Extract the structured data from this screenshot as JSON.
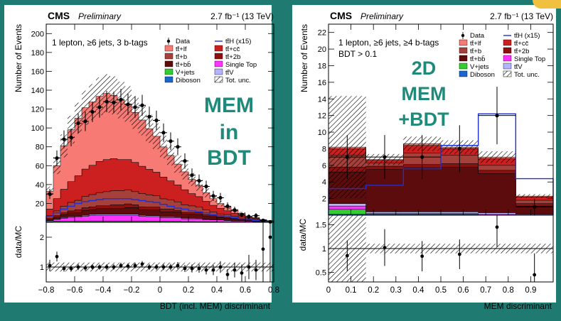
{
  "colors": {
    "frame": "#1f7a72",
    "tth": "#1f2fd1",
    "ttlf": "#f77a74",
    "ttcc": "#cc1f1f",
    "ttb": "#a6403a",
    "tt2b": "#8c1010",
    "ttbb": "#5c0c0c",
    "singletop": "#ff33ff",
    "vjets": "#33cc33",
    "ttv": "#b3b3ff",
    "diboson": "#1a66cc",
    "overlay": "#1f8a7a"
  },
  "chart_data": [
    {
      "type": "area",
      "experiment": "CMS",
      "status": "Preliminary",
      "lumi": "2.7 fb⁻¹ (13 TeV)",
      "selection": "1 lepton, ≥6 jets, 3 b-tags",
      "overlay_text": [
        "MEM",
        "in",
        "BDT"
      ],
      "xlabel": "BDT (incl. MEM) discriminant",
      "ylabel": "Number of Events",
      "ratio_ylabel": "data/MC",
      "xlim": [
        -0.8,
        0.8
      ],
      "ylim": [
        0,
        210
      ],
      "ratio_ylim": [
        0.5,
        2.5
      ],
      "xticks": [
        -0.8,
        -0.6,
        -0.4,
        -0.2,
        0,
        0.2,
        0.4,
        0.6,
        0.8
      ],
      "yticks": [
        20,
        40,
        60,
        80,
        100,
        120,
        140,
        160,
        180,
        200
      ],
      "ratio_yticks": [
        1,
        2
      ],
      "bin_edges": [
        -0.8,
        -0.75,
        -0.7,
        -0.65,
        -0.6,
        -0.55,
        -0.5,
        -0.45,
        -0.4,
        -0.35,
        -0.3,
        -0.25,
        -0.2,
        -0.15,
        -0.1,
        -0.05,
        0,
        0.05,
        0.1,
        0.15,
        0.2,
        0.25,
        0.3,
        0.35,
        0.4,
        0.45,
        0.5,
        0.55,
        0.6,
        0.65,
        0.7,
        0.75,
        0.8
      ],
      "stack": [
        {
          "name": "Diboson",
          "color": "#1a66cc",
          "values": [
            0.2,
            0.3,
            0.3,
            0.3,
            0.4,
            0.4,
            0.4,
            0.4,
            0.4,
            0.4,
            0.4,
            0.4,
            0.4,
            0.4,
            0.3,
            0.3,
            0.3,
            0.3,
            0.3,
            0.2,
            0.2,
            0.2,
            0.2,
            0.2,
            0.1,
            0.1,
            0.1,
            0.1,
            0.1,
            0.1,
            0,
            0
          ]
        },
        {
          "name": "V+jets",
          "color": "#33cc33",
          "values": [
            0.5,
            0.8,
            1,
            1,
            1,
            1,
            1,
            1,
            1,
            1,
            1,
            1,
            1,
            1,
            0.8,
            0.8,
            0.7,
            0.7,
            0.6,
            0.5,
            0.5,
            0.4,
            0.4,
            0.3,
            0.3,
            0.2,
            0.2,
            0.2,
            0.1,
            0.1,
            0.1,
            0
          ]
        },
        {
          "name": "Single Top",
          "color": "#ff33ff",
          "values": [
            1,
            2,
            3,
            4,
            4,
            5,
            6,
            6,
            6,
            6,
            6,
            6,
            6,
            5,
            5,
            5,
            4,
            4,
            4,
            3,
            3,
            3,
            2,
            2,
            2,
            1.5,
            1,
            1,
            0.8,
            0.5,
            0.3,
            0.2
          ]
        },
        {
          "name": "tt̄V",
          "color": "#b3b3ff",
          "values": [
            0.3,
            0.5,
            0.7,
            0.8,
            0.9,
            1,
            1,
            1.1,
            1.1,
            1.1,
            1.1,
            1.1,
            1.1,
            1,
            1,
            1,
            0.9,
            0.9,
            0.8,
            0.8,
            0.7,
            0.6,
            0.6,
            0.5,
            0.5,
            0.4,
            0.3,
            0.3,
            0.2,
            0.2,
            0.1,
            0.1
          ]
        },
        {
          "name": "tt̄+bb̄",
          "color": "#5c0c0c",
          "values": [
            1,
            2,
            3,
            4,
            4,
            5,
            5,
            6,
            6,
            6,
            6,
            7,
            7,
            6,
            6,
            6,
            5,
            5,
            5,
            4,
            4,
            4,
            3,
            3,
            2,
            2,
            2,
            1,
            1,
            1,
            0.5,
            0.3
          ]
        },
        {
          "name": "tt̄+2b",
          "color": "#8c1010",
          "values": [
            1,
            1.5,
            2,
            2,
            3,
            3,
            3,
            3,
            3,
            4,
            4,
            4,
            3,
            3,
            3,
            3,
            3,
            3,
            2,
            2,
            2,
            2,
            2,
            1,
            1,
            1,
            1,
            1,
            0.5,
            0.5,
            0.3,
            0.2
          ]
        },
        {
          "name": "tt̄+b",
          "color": "#a6403a",
          "values": [
            3,
            5,
            7,
            9,
            10,
            12,
            13,
            14,
            15,
            15,
            15,
            15,
            14,
            14,
            13,
            12,
            11,
            10,
            9,
            8,
            7,
            6,
            5,
            4,
            3,
            3,
            2,
            2,
            1,
            1,
            0.5,
            0.3
          ]
        },
        {
          "name": "tt̄+cc̄",
          "color": "#cc1f1f",
          "values": [
            7,
            13,
            18,
            22,
            26,
            29,
            31,
            33,
            34,
            34,
            33,
            32,
            31,
            29,
            27,
            25,
            23,
            20,
            18,
            16,
            13,
            11,
            9,
            7,
            6,
            4,
            3,
            2,
            1.5,
            1,
            0.6,
            0.3
          ]
        },
        {
          "name": "tt̄+lf",
          "color": "#f77a74",
          "values": [
            19,
            35,
            46,
            55,
            61,
            65,
            67,
            69,
            70,
            67,
            63,
            59,
            53,
            49,
            43,
            38,
            32,
            27,
            22,
            19,
            15,
            12,
            9,
            7,
            5,
            4.5,
            3,
            2,
            1,
            0.6,
            0.5,
            0.4
          ]
        }
      ],
      "signal": {
        "name": "tt̄H (x15)",
        "color": "#1f2fd1",
        "values": [
          6,
          10,
          14,
          17,
          20,
          22,
          23,
          24,
          25,
          25,
          25,
          25,
          24,
          23,
          22,
          21,
          19,
          17,
          15,
          14,
          12,
          11,
          10,
          8,
          7,
          6,
          5,
          4,
          3,
          2,
          1.5,
          1
        ]
      },
      "data": {
        "name": "Data",
        "x": [
          -0.775,
          -0.725,
          -0.675,
          -0.625,
          -0.575,
          -0.525,
          -0.475,
          -0.425,
          -0.375,
          -0.325,
          -0.275,
          -0.225,
          -0.175,
          -0.125,
          -0.075,
          -0.025,
          0.025,
          0.075,
          0.125,
          0.175,
          0.225,
          0.275,
          0.325,
          0.375,
          0.425,
          0.475,
          0.525,
          0.575,
          0.625,
          0.675,
          0.725,
          0.775
        ],
        "y": [
          30,
          68,
          88,
          90,
          105,
          107,
          117,
          122,
          128,
          127,
          130,
          125,
          122,
          124,
          112,
          108,
          95,
          86,
          80,
          65,
          50,
          44,
          38,
          28,
          26,
          17,
          13,
          8,
          6,
          7,
          2,
          0.5
        ],
        "ratio": [
          1.05,
          1.35,
          0.95,
          0.95,
          1.0,
          0.97,
          1.0,
          1.0,
          1.0,
          1.0,
          1.05,
          1.03,
          1.05,
          1.1,
          1.0,
          1.0,
          1.0,
          1.0,
          1.05,
          0.95,
          0.95,
          0.95,
          0.9,
          0.9,
          1.0,
          0.75,
          0.9,
          0.8,
          1.0,
          0.9,
          1.6,
          2.0
        ]
      },
      "uncertainty_frac": 0.15,
      "legend": {
        "position": "top-right",
        "entries": [
          {
            "label": "Data",
            "kind": "data"
          },
          {
            "label": "tt̄H (x15)",
            "kind": "line",
            "color": "#1f2fd1"
          },
          {
            "label": "tt̄+lf",
            "kind": "fill",
            "color": "#f77a74"
          },
          {
            "label": "tt̄+cc̄",
            "kind": "fill",
            "color": "#cc1f1f"
          },
          {
            "label": "tt̄+b",
            "kind": "fill",
            "color": "#a6403a"
          },
          {
            "label": "tt̄+2b",
            "kind": "fill",
            "color": "#8c1010"
          },
          {
            "label": "tt̄+bb̄",
            "kind": "fill",
            "color": "#5c0c0c"
          },
          {
            "label": "Single Top",
            "kind": "fill",
            "color": "#ff33ff"
          },
          {
            "label": "V+jets",
            "kind": "fill",
            "color": "#33cc33"
          },
          {
            "label": "tt̄V",
            "kind": "fill",
            "color": "#b3b3ff"
          },
          {
            "label": "Diboson",
            "kind": "fill",
            "color": "#1a66cc"
          },
          {
            "label": "Tot. unc.",
            "kind": "hatch"
          }
        ]
      }
    },
    {
      "type": "area",
      "experiment": "CMS",
      "status": "Preliminary",
      "lumi": "2.7 fb⁻¹ (13 TeV)",
      "selection": "1 lepton, ≥6 jets, ≥4 b-tags",
      "selection2": "BDT > 0.1",
      "overlay_text": [
        "2D",
        "MEM",
        "+BDT"
      ],
      "xlabel": "MEM discriminant",
      "ylabel": "Number of Events",
      "ratio_ylabel": "data/MC",
      "xlim": [
        0,
        1
      ],
      "ylim": [
        0,
        23
      ],
      "ratio_ylim": [
        0.3,
        1.7
      ],
      "xticks": [
        0,
        0.1,
        0.2,
        0.3,
        0.4,
        0.5,
        0.6,
        0.7,
        0.8,
        0.9
      ],
      "yticks": [
        2,
        4,
        6,
        8,
        10,
        12,
        14,
        16,
        18,
        20,
        22
      ],
      "ratio_yticks": [
        0.5,
        1,
        1.5
      ],
      "bin_edges": [
        0,
        0.1667,
        0.3333,
        0.5,
        0.6667,
        0.8333,
        1
      ],
      "stack": [
        {
          "name": "Diboson",
          "color": "#1a66cc",
          "values": [
            0.1,
            0.1,
            0.1,
            0.1,
            0,
            0
          ]
        },
        {
          "name": "V+jets",
          "color": "#33cc33",
          "values": [
            0.6,
            0,
            0,
            0,
            0,
            0
          ]
        },
        {
          "name": "Single Top",
          "color": "#ff33ff",
          "values": [
            0.4,
            0.1,
            0.1,
            0.1,
            0.1,
            0
          ]
        },
        {
          "name": "tt̄V",
          "color": "#b3b3ff",
          "values": [
            0.3,
            0.2,
            0.2,
            0.2,
            0.2,
            0.1
          ]
        },
        {
          "name": "tt̄+bb̄",
          "color": "#5c0c0c",
          "values": [
            3.8,
            5.1,
            5.3,
            5.4,
            4.7,
            1.0
          ]
        },
        {
          "name": "tt̄+2b",
          "color": "#8c1010",
          "values": [
            0.6,
            0.4,
            0.4,
            0.4,
            0.4,
            0.3
          ]
        },
        {
          "name": "tt̄+b",
          "color": "#a6403a",
          "values": [
            1.4,
            0.4,
            1.4,
            1.0,
            0.6,
            0.4
          ]
        },
        {
          "name": "tt̄+cc̄",
          "color": "#cc1f1f",
          "values": [
            0.8,
            0.3,
            0.9,
            0.8,
            0.8,
            0.4
          ]
        },
        {
          "name": "tt̄+lf",
          "color": "#f77a74",
          "values": [
            0.2,
            0.1,
            0.2,
            0.2,
            0.2,
            0.1
          ]
        }
      ],
      "signal": {
        "name": "tt̄H (x15)",
        "color": "#1f2fd1",
        "values": [
          3.2,
          3.6,
          5.6,
          8.4,
          12.2,
          4.4
        ]
      },
      "data": {
        "name": "Data",
        "x": [
          0.0833,
          0.25,
          0.4167,
          0.5833,
          0.75,
          0.9167
        ],
        "y": [
          7,
          7,
          7,
          8,
          12,
          1
        ],
        "ratio": [
          0.85,
          1.02,
          0.84,
          0.88,
          1.45,
          0.45
        ]
      },
      "uncertainty_frac": [
        0.75,
        0.1,
        0.1,
        0.1,
        0.1,
        0.1
      ],
      "legend": {
        "position": "top-right",
        "entries": [
          {
            "label": "Data",
            "kind": "data"
          },
          {
            "label": "tt̄H (x15)",
            "kind": "line",
            "color": "#1f2fd1"
          },
          {
            "label": "tt̄+lf",
            "kind": "fill",
            "color": "#f77a74"
          },
          {
            "label": "tt̄+cc̄",
            "kind": "fill",
            "color": "#cc1f1f"
          },
          {
            "label": "tt̄+b",
            "kind": "fill",
            "color": "#a6403a"
          },
          {
            "label": "tt̄+2b",
            "kind": "fill",
            "color": "#8c1010"
          },
          {
            "label": "tt̄+bb̄",
            "kind": "fill",
            "color": "#5c0c0c"
          },
          {
            "label": "Single Top",
            "kind": "fill",
            "color": "#ff33ff"
          },
          {
            "label": "V+jets",
            "kind": "fill",
            "color": "#33cc33"
          },
          {
            "label": "tt̄V",
            "kind": "fill",
            "color": "#b3b3ff"
          },
          {
            "label": "Diboson",
            "kind": "fill",
            "color": "#1a66cc"
          },
          {
            "label": "Tot. unc.",
            "kind": "hatch"
          }
        ]
      }
    }
  ]
}
